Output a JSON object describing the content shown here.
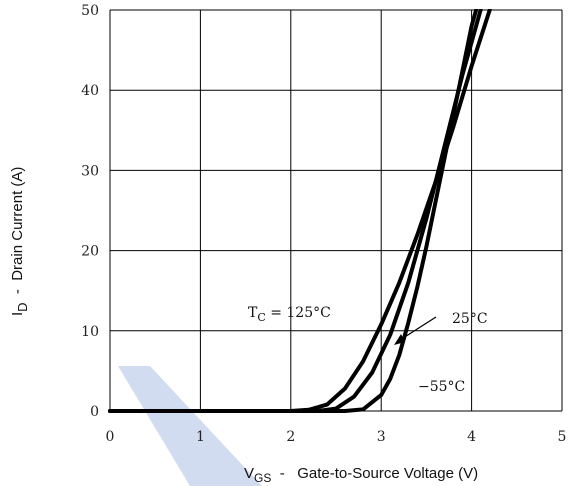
{
  "chart_data": {
    "type": "line",
    "xlabel": {
      "main": "V",
      "sub": "GS",
      "rest": "  -   Gate-to-Source Voltage (V)"
    },
    "ylabel": {
      "main": "I",
      "sub": "D",
      "rest": "  -  Drain Current (A)"
    },
    "xlim": [
      0,
      5
    ],
    "ylim": [
      0,
      50
    ],
    "xticks": [
      0,
      1,
      2,
      3,
      4,
      5
    ],
    "yticks": [
      0,
      10,
      20,
      30,
      40,
      50
    ],
    "grid": true,
    "series": [
      {
        "name": "T_C = 125°C",
        "x": [
          0,
          2.0,
          2.2,
          2.4,
          2.6,
          2.8,
          3.0,
          3.2,
          3.4,
          3.6,
          3.8,
          4.0,
          4.2
        ],
        "y": [
          0,
          0,
          0.15,
          0.8,
          2.8,
          6.2,
          10.8,
          16.0,
          22.0,
          28.5,
          35.5,
          43.0,
          50.0
        ]
      },
      {
        "name": "25°C",
        "x": [
          0,
          2.3,
          2.5,
          2.7,
          2.9,
          3.1,
          3.3,
          3.5,
          3.7,
          3.9,
          4.1
        ],
        "y": [
          0,
          0,
          0.3,
          1.8,
          4.8,
          9.5,
          16.0,
          24.0,
          33.0,
          42.0,
          50.0
        ]
      },
      {
        "name": "-55°C",
        "x": [
          0,
          2.6,
          2.8,
          3.0,
          3.1,
          3.2,
          3.3,
          3.4,
          3.5,
          3.6,
          3.7,
          3.8,
          3.9,
          4.0,
          4.05
        ],
        "y": [
          0,
          0,
          0.2,
          2.0,
          4.0,
          7.0,
          11.0,
          15.5,
          20.5,
          26.0,
          31.5,
          37.0,
          42.5,
          48.0,
          50.0
        ]
      }
    ],
    "annotations": {
      "tc_main": "T",
      "tc_sub": "C",
      "tc_rest": "  =  125°C",
      "t25": "25°C",
      "tm55": "−55°C"
    },
    "line_color": "#000000",
    "watermark_color": "#c9d6ee"
  }
}
